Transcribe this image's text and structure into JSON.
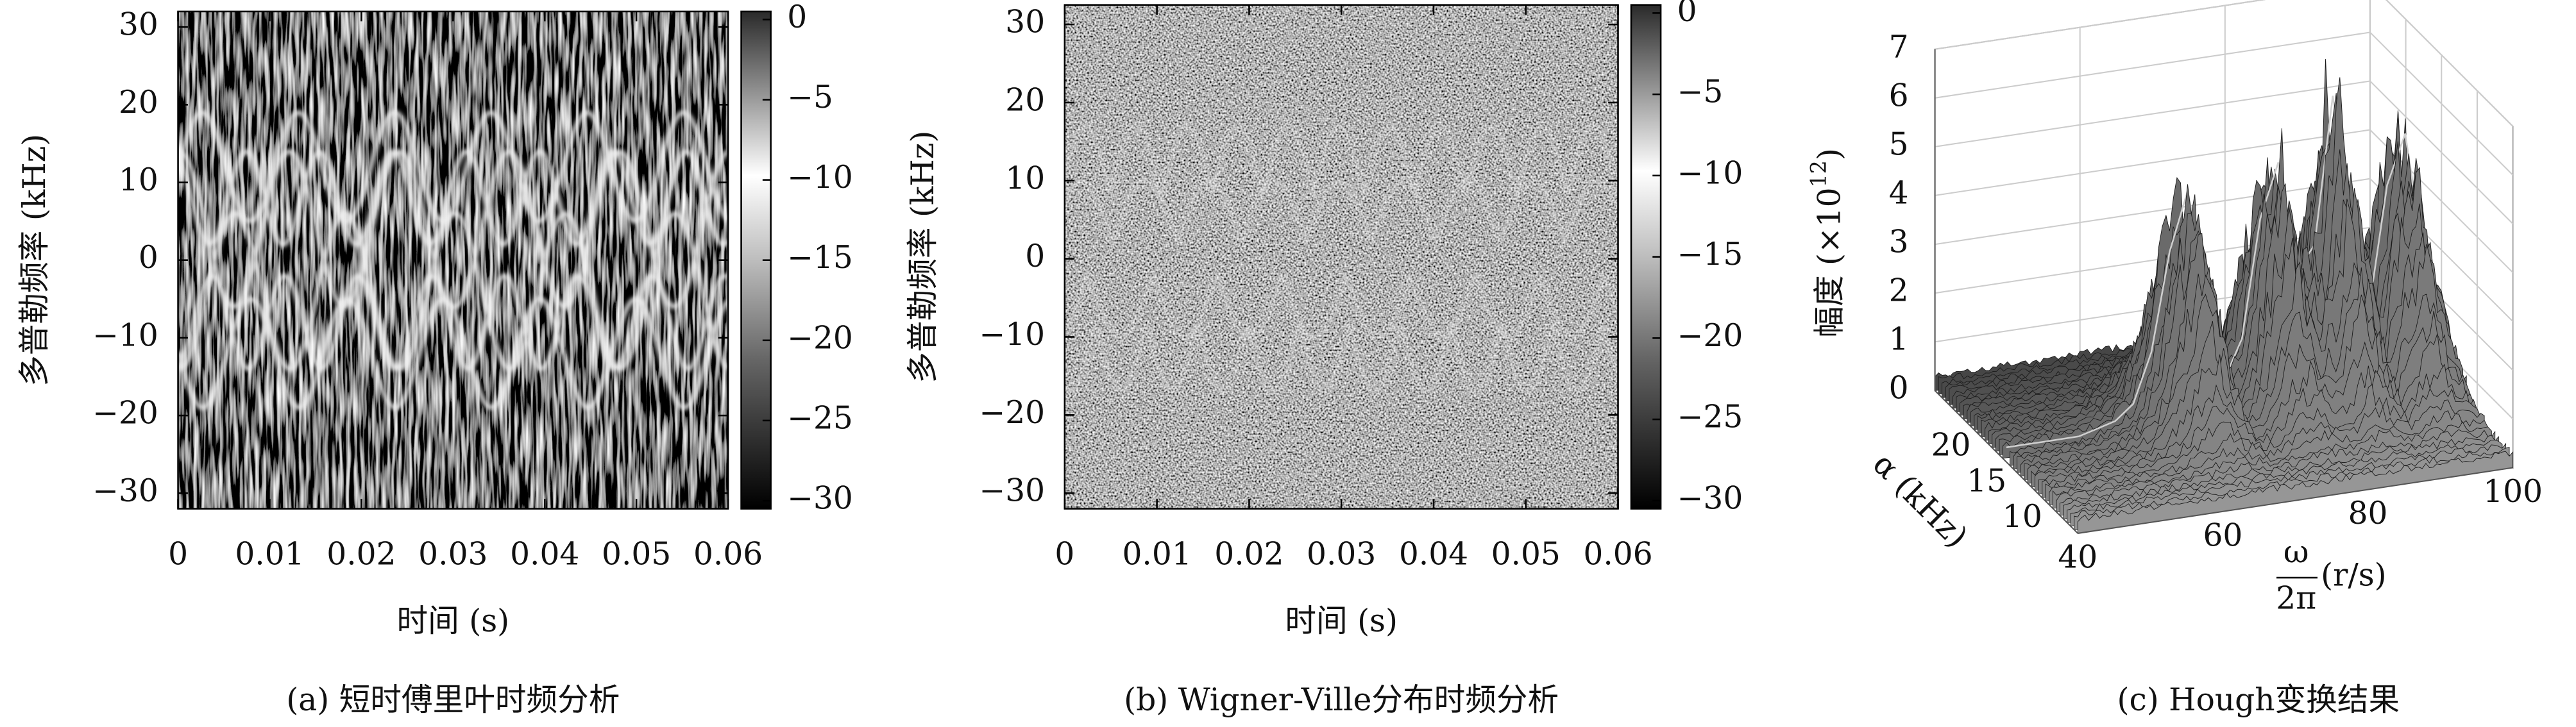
{
  "chart_data": [
    {
      "type": "heatmap",
      "caption": "(a) 短时傅里叶时频分析",
      "xlabel": "时间 (s)",
      "ylabel": "多普勒频率 (kHz)",
      "xlim": [
        0,
        0.06
      ],
      "xticks": [
        0,
        0.01,
        0.02,
        0.03,
        0.04,
        0.05,
        0.06
      ],
      "ylim": [
        -32,
        32
      ],
      "yticks": [
        {
          "value": -30,
          "label": "−30"
        },
        {
          "value": -20,
          "label": "−20"
        },
        {
          "value": -10,
          "label": "−10"
        },
        0,
        10,
        20,
        30
      ],
      "clim": [
        -30.5,
        0.5
      ],
      "cticks": [
        0,
        {
          "value": -5,
          "label": "−5"
        },
        {
          "value": -10,
          "label": "−10"
        },
        {
          "value": -15,
          "label": "−15"
        },
        {
          "value": -20,
          "label": "−20"
        },
        {
          "value": -25,
          "label": "−25"
        },
        {
          "value": -30,
          "label": "−30"
        }
      ]
    },
    {
      "type": "heatmap",
      "caption": "(b) Wigner-Ville分布时频分析",
      "xlabel": "时间 (s)",
      "ylabel": "多普勒频率 (kHz)",
      "xlim": [
        0,
        0.06
      ],
      "xticks": [
        0,
        0.01,
        0.02,
        0.03,
        0.04,
        0.05,
        0.06
      ],
      "ylim": [
        -32,
        32.5
      ],
      "yticks": [
        {
          "value": -30,
          "label": "−30"
        },
        {
          "value": -20,
          "label": "−20"
        },
        {
          "value": -10,
          "label": "−10"
        },
        0,
        10,
        20,
        30
      ],
      "clim": [
        -30.5,
        0.5
      ],
      "cticks": [
        0,
        {
          "value": -5,
          "label": "−5"
        },
        {
          "value": -10,
          "label": "−10"
        },
        {
          "value": -15,
          "label": "−15"
        },
        {
          "value": -20,
          "label": "−20"
        },
        {
          "value": -25,
          "label": "−25"
        },
        {
          "value": -30,
          "label": "−30"
        }
      ]
    },
    {
      "type": "surface3d",
      "caption": "(c) Hough变换结果",
      "zlabel_base": "幅度 (×10",
      "zlabel_exp": "12",
      "zlabel_close": ")",
      "ylabel": "α (kHz)",
      "xlabel_num": "ω",
      "xlabel_den": "2π",
      "xlabel_unit": "(r/s)",
      "xlim": [
        40,
        100
      ],
      "xticks": [
        40,
        60,
        80,
        100
      ],
      "ylim": [
        5,
        25
      ],
      "yticks": [
        20,
        15,
        10
      ],
      "zlim": [
        0,
        7
      ],
      "zticks": [
        0,
        1,
        2,
        3,
        4,
        5,
        6,
        7
      ],
      "grid": true,
      "x": [
        40,
        42.5,
        45,
        47.5,
        50,
        52.5,
        55,
        57.5,
        60,
        62.5,
        65,
        67.5,
        70,
        72.5,
        75,
        77.5,
        80,
        82.5,
        85,
        87.5,
        90,
        92.5,
        95,
        97.5,
        100
      ],
      "values": [
        0.3,
        0.3,
        0.3,
        0.3,
        0.3,
        0.4,
        0.5,
        0.8,
        1.8,
        3.8,
        5.0,
        3.0,
        1.0,
        1.8,
        4.2,
        5.3,
        3.0,
        3.5,
        6.5,
        4.0,
        2.0,
        4.5,
        5.5,
        3.0,
        1.5
      ]
    }
  ]
}
